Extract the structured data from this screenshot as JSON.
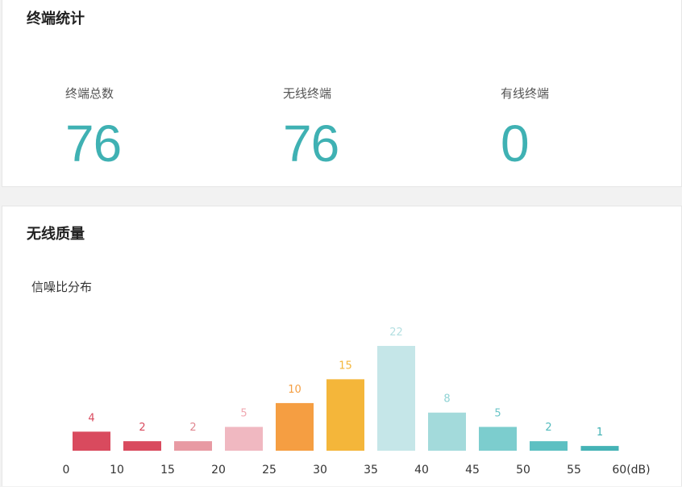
{
  "terminal_stats": {
    "title": "终端统计",
    "items": [
      {
        "label": "终端总数",
        "value": "76"
      },
      {
        "label": "无线终端",
        "value": "76"
      },
      {
        "label": "有线终端",
        "value": "0"
      }
    ]
  },
  "wireless_quality": {
    "title": "无线质量",
    "chart_title": "信噪比分布"
  },
  "chart_data": {
    "type": "bar",
    "title": "信噪比分布",
    "x_ticks": [
      "0",
      "10",
      "15",
      "20",
      "25",
      "30",
      "35",
      "40",
      "45",
      "50",
      "55",
      "60(dB)"
    ],
    "values": [
      4,
      2,
      2,
      5,
      10,
      15,
      22,
      8,
      5,
      2,
      1
    ],
    "colors": [
      "#d94a5e",
      "#d94a5e",
      "#e89aa3",
      "#f0b8c1",
      "#f59e42",
      "#f4b63a",
      "#c5e6e8",
      "#a3dadb",
      "#7ccdce",
      "#5dc0c2",
      "#45b3b6"
    ],
    "label_colors": [
      "#d94a5e",
      "#d94a5e",
      "#e08790",
      "#f0a8b1",
      "#f59e42",
      "#f4b63a",
      "#b3dfe1",
      "#8fd3d4",
      "#6cc6c8",
      "#52bbbd",
      "#3fb1b3"
    ],
    "ylim": [
      0,
      22
    ]
  }
}
